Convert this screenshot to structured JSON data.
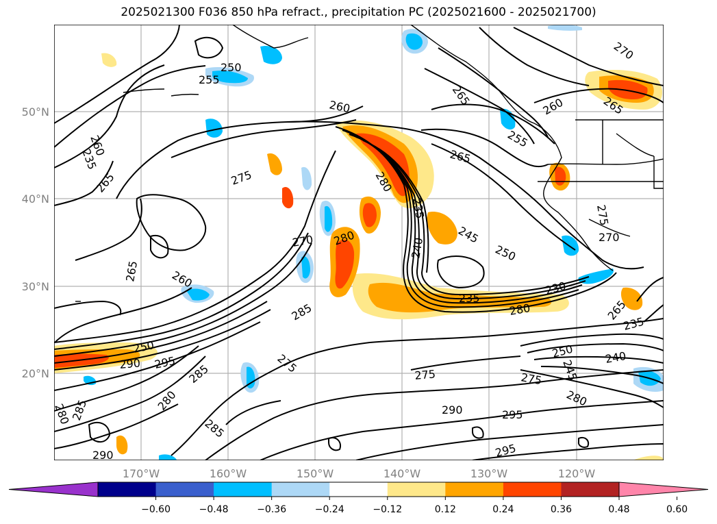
{
  "title": "2025021300 F036 850 hPa refract., precipitation PC (2025021600 - 2025021700)",
  "map": {
    "lon_labels": [
      "170°W",
      "160°W",
      "150°W",
      "140°W",
      "130°W",
      "120°W"
    ],
    "lat_labels": [
      "50°N",
      "40°N",
      "30°N",
      "20°N"
    ],
    "contour_labels": [
      "255",
      "250",
      "260",
      "235",
      "265",
      "275",
      "270",
      "285",
      "290",
      "295",
      "280",
      "240",
      "245",
      "230"
    ]
  },
  "colorbar": {
    "ticks": [
      "−0.60",
      "−0.48",
      "−0.36",
      "−0.24",
      "−0.12",
      "0.12",
      "0.24",
      "0.36",
      "0.48",
      "0.60"
    ],
    "colors": [
      "#9932cc",
      "#00008b",
      "#3a5fcd",
      "#00bfff",
      "#add8f6",
      "#ffffff",
      "#fee88a",
      "#ffa500",
      "#ff4500",
      "#b22222",
      "#ff85aa"
    ]
  }
}
